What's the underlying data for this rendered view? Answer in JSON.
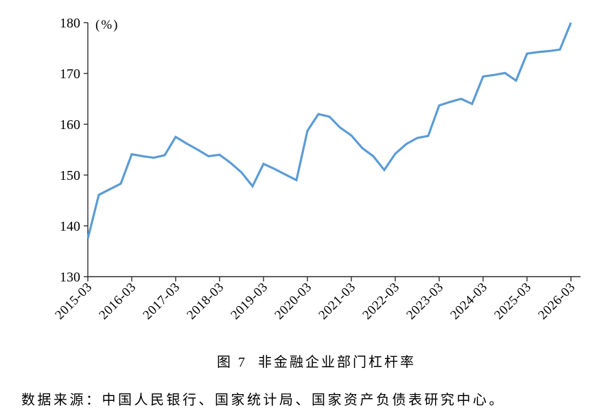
{
  "page": {
    "background": "#ffffff"
  },
  "caption": {
    "figure_label": "图 7",
    "figure_title": "非金融企业部门杠杆率"
  },
  "source_note": "数据来源：中国人民银行、国家统计局、国家资产负债表研究中心。",
  "chart_data": {
    "type": "line",
    "title": "图 7 非金融企业部门杠杆率",
    "series_name": "非金融企业部门杠杆率",
    "unit_label": "(%)",
    "xlabel": "",
    "ylabel": "",
    "ylim": [
      130,
      180
    ],
    "y_ticks": [
      130,
      140,
      150,
      160,
      170,
      180
    ],
    "x_tick_labels": [
      "2015-03",
      "2016-03",
      "2017-03",
      "2018-03",
      "2019-03",
      "2020-03",
      "2021-03",
      "2022-03",
      "2023-03",
      "2024-03",
      "2025-03",
      "2026-03"
    ],
    "x_frequency": "quarterly",
    "x": [
      "2015-03",
      "2015-06",
      "2015-09",
      "2015-12",
      "2016-03",
      "2016-06",
      "2016-09",
      "2016-12",
      "2017-03",
      "2017-06",
      "2017-09",
      "2017-12",
      "2018-03",
      "2018-06",
      "2018-09",
      "2018-12",
      "2019-03",
      "2019-06",
      "2019-09",
      "2019-12",
      "2020-03",
      "2020-06",
      "2020-09",
      "2020-12",
      "2021-03",
      "2021-06",
      "2021-09",
      "2021-12",
      "2022-03",
      "2022-06",
      "2022-09",
      "2022-12",
      "2023-03",
      "2023-06",
      "2023-09",
      "2023-12",
      "2024-03",
      "2024-06",
      "2024-09",
      "2024-12",
      "2025-03",
      "2025-06",
      "2025-09",
      "2025-12",
      "2026-03"
    ],
    "values": [
      137.5,
      146.1,
      147.2,
      148.3,
      154.1,
      153.7,
      153.4,
      153.9,
      157.5,
      156.2,
      155.0,
      153.7,
      154.0,
      152.4,
      150.5,
      147.8,
      152.2,
      151.2,
      150.1,
      149.0,
      158.7,
      162.0,
      161.5,
      159.3,
      157.8,
      155.3,
      153.7,
      151.0,
      154.2,
      156.1,
      157.3,
      157.7,
      163.7,
      164.4,
      165.0,
      164.0,
      169.4,
      169.7,
      170.1,
      168.6,
      173.9,
      174.2,
      174.4,
      174.7,
      180.0
    ],
    "line_color": "#5B9BD5",
    "axis_color": "#2b2b2b",
    "grid": false,
    "legend": "none"
  }
}
